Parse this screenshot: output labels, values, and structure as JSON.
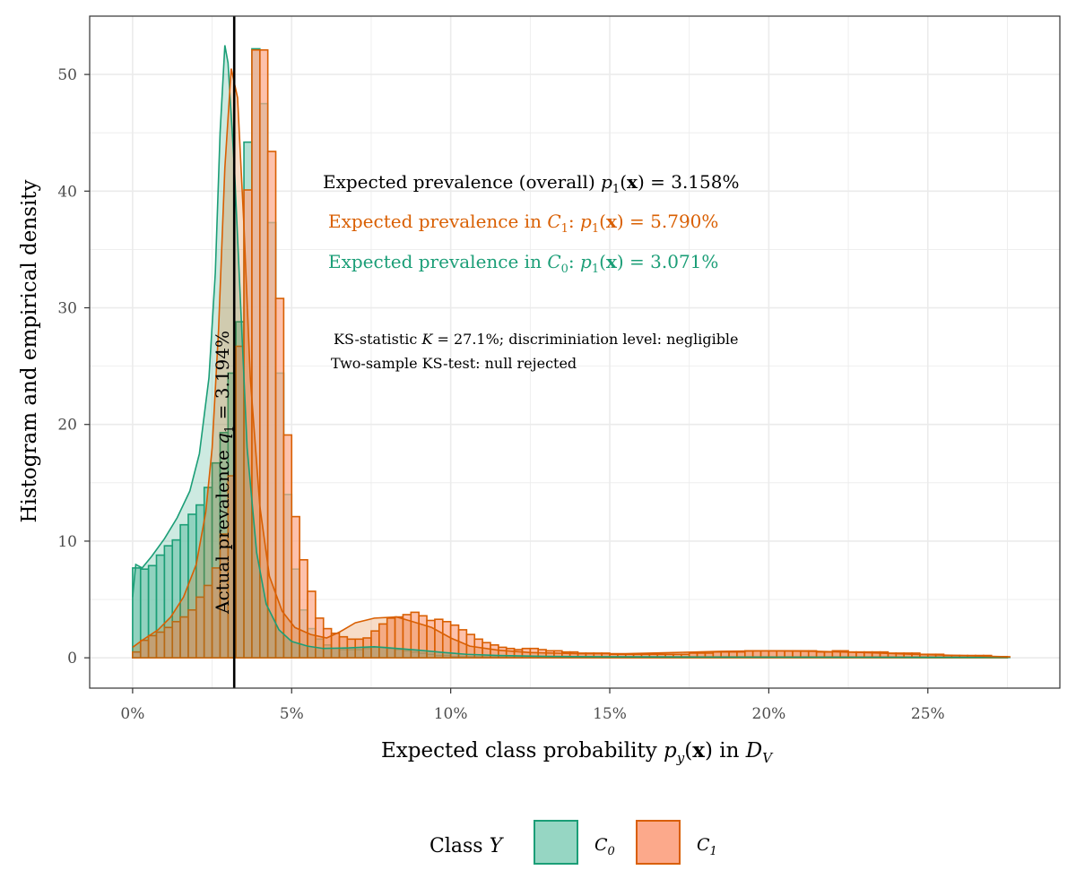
{
  "chart_data": {
    "type": "histogram",
    "xlabel": "Expected class probability p_y(x) in D_V",
    "ylabel": "Histogram and empirical density",
    "x_ticks": [
      "0%",
      "5%",
      "10%",
      "15%",
      "20%",
      "25%"
    ],
    "y_ticks": [
      "0",
      "10",
      "20",
      "30",
      "40",
      "50"
    ],
    "xlim": [
      -0.0135,
      0.2915
    ],
    "ylim": [
      -2.6,
      55.0
    ],
    "grid": true,
    "vline": {
      "x": 0.03194,
      "label": "Actual prevalence q_1 = 3.194%",
      "color": "#000000"
    },
    "annotations": [
      {
        "text": "Expected prevalence (overall) p_1(x) = 3.158%",
        "color": "#000000"
      },
      {
        "text": "Expected prevalence in C_1: p_1(x) = 5.790%",
        "color": "#d95f02"
      },
      {
        "text": "Expected prevalence in C_0: p_1(x) = 3.071%",
        "color": "#1b9e77"
      },
      {
        "text": "KS-statistic K = 27.1%; discriminiation level: negligible",
        "color": "#000000"
      },
      {
        "text": "Two-sample KS-test: null rejected",
        "color": "#000000"
      }
    ],
    "legend": {
      "title": "Class Y",
      "position": "bottom"
    },
    "bin_width": 0.0025,
    "series": [
      {
        "name": "C_0",
        "color": "#1b9e77",
        "fill": "#96d6c3",
        "bins_start": 0.0,
        "values": [
          7.7,
          7.6,
          7.9,
          8.8,
          9.6,
          10.1,
          11.4,
          12.3,
          13.1,
          14.6,
          16.7,
          19.3,
          24.4,
          28.8,
          44.2,
          52.2,
          47.5,
          37.3,
          24.4,
          14.0,
          7.6,
          4.1,
          2.5,
          1.6,
          1.1,
          0.8,
          0.7,
          0.7,
          0.7,
          0.8,
          0.9,
          0.9,
          0.8,
          0.7,
          0.6,
          0.5,
          0.4,
          0.3,
          0.2,
          0.2,
          0.1,
          0.1,
          0.1,
          0.1,
          0.1,
          0.1,
          0.1,
          0.1,
          0.1,
          0.1,
          0.1,
          0.1,
          0.1,
          0.1,
          0.1,
          0.1,
          0.1,
          0.1,
          0.1,
          0.1,
          0.1,
          0.1,
          0.1,
          0.1,
          0.1,
          0.1,
          0.1,
          0.1,
          0.1,
          0.1,
          0.1,
          0.1,
          0.1,
          0.1,
          0.1,
          0.1,
          0.1,
          0.1,
          0.1,
          0.1,
          0.1,
          0.1,
          0.1,
          0.1,
          0.1,
          0.1,
          0.1,
          0.1,
          0.1,
          0.1,
          0.1,
          0.1,
          0.1,
          0.1,
          0.1,
          0.1,
          0.1,
          0.1,
          0.1,
          0.1,
          0.1,
          0.1,
          0.1,
          0.1,
          0.1,
          0.1,
          0.1,
          0.1,
          0.1,
          0.1
        ],
        "density": [
          [
            0.0,
            5.2
          ],
          [
            0.001,
            8.0
          ],
          [
            0.003,
            7.7
          ],
          [
            0.006,
            8.7
          ],
          [
            0.01,
            10.2
          ],
          [
            0.014,
            12.0
          ],
          [
            0.018,
            14.3
          ],
          [
            0.021,
            17.5
          ],
          [
            0.024,
            24.0
          ],
          [
            0.026,
            33.0
          ],
          [
            0.0275,
            45.0
          ],
          [
            0.029,
            52.5
          ],
          [
            0.03,
            51.0
          ],
          [
            0.032,
            42.0
          ],
          [
            0.034,
            30.0
          ],
          [
            0.036,
            18.0
          ],
          [
            0.039,
            9.0
          ],
          [
            0.042,
            4.6
          ],
          [
            0.046,
            2.4
          ],
          [
            0.05,
            1.4
          ],
          [
            0.055,
            1.0
          ],
          [
            0.06,
            0.8
          ],
          [
            0.068,
            0.85
          ],
          [
            0.076,
            0.95
          ],
          [
            0.083,
            0.8
          ],
          [
            0.09,
            0.65
          ],
          [
            0.098,
            0.45
          ],
          [
            0.105,
            0.3
          ],
          [
            0.115,
            0.2
          ],
          [
            0.13,
            0.12
          ],
          [
            0.15,
            0.08
          ],
          [
            0.18,
            0.06
          ],
          [
            0.21,
            0.05
          ],
          [
            0.24,
            0.04
          ],
          [
            0.276,
            0.03
          ]
        ]
      },
      {
        "name": "C_1",
        "color": "#d95f02",
        "fill": "#fca98b",
        "bins_start": 0.0,
        "values": [
          0.5,
          1.5,
          1.9,
          2.2,
          2.6,
          3.1,
          3.5,
          4.1,
          5.2,
          6.2,
          7.7,
          10.6,
          15.6,
          26.7,
          40.1,
          52.1,
          52.1,
          43.4,
          30.8,
          19.1,
          12.1,
          8.4,
          5.7,
          3.4,
          2.5,
          2.1,
          1.8,
          1.6,
          1.6,
          1.7,
          2.3,
          2.9,
          3.4,
          3.5,
          3.7,
          3.9,
          3.6,
          3.2,
          3.3,
          3.1,
          2.8,
          2.4,
          2.0,
          1.6,
          1.3,
          1.1,
          0.9,
          0.8,
          0.7,
          0.8,
          0.8,
          0.7,
          0.6,
          0.6,
          0.5,
          0.5,
          0.4,
          0.4,
          0.4,
          0.4,
          0.3,
          0.3,
          0.3,
          0.3,
          0.3,
          0.3,
          0.3,
          0.3,
          0.3,
          0.3,
          0.4,
          0.4,
          0.4,
          0.5,
          0.5,
          0.5,
          0.5,
          0.6,
          0.6,
          0.6,
          0.6,
          0.6,
          0.6,
          0.6,
          0.6,
          0.6,
          0.5,
          0.5,
          0.6,
          0.6,
          0.5,
          0.5,
          0.5,
          0.5,
          0.5,
          0.4,
          0.4,
          0.4,
          0.4,
          0.3,
          0.3,
          0.3,
          0.2,
          0.2,
          0.2,
          0.2,
          0.2,
          0.2,
          0.1,
          0.1
        ],
        "density": [
          [
            0.0,
            0.9
          ],
          [
            0.003,
            1.5
          ],
          [
            0.008,
            2.4
          ],
          [
            0.012,
            3.5
          ],
          [
            0.016,
            5.2
          ],
          [
            0.02,
            8.0
          ],
          [
            0.023,
            12.5
          ],
          [
            0.025,
            18.0
          ],
          [
            0.027,
            28.0
          ],
          [
            0.029,
            42.0
          ],
          [
            0.031,
            50.5
          ],
          [
            0.033,
            48.0
          ],
          [
            0.035,
            37.0
          ],
          [
            0.037,
            24.0
          ],
          [
            0.04,
            13.0
          ],
          [
            0.043,
            7.0
          ],
          [
            0.047,
            4.0
          ],
          [
            0.051,
            2.6
          ],
          [
            0.056,
            2.0
          ],
          [
            0.061,
            1.7
          ],
          [
            0.065,
            2.2
          ],
          [
            0.07,
            3.0
          ],
          [
            0.076,
            3.4
          ],
          [
            0.083,
            3.5
          ],
          [
            0.088,
            3.1
          ],
          [
            0.094,
            2.6
          ],
          [
            0.1,
            1.7
          ],
          [
            0.106,
            1.0
          ],
          [
            0.115,
            0.65
          ],
          [
            0.125,
            0.45
          ],
          [
            0.14,
            0.35
          ],
          [
            0.155,
            0.35
          ],
          [
            0.17,
            0.45
          ],
          [
            0.185,
            0.55
          ],
          [
            0.2,
            0.6
          ],
          [
            0.215,
            0.55
          ],
          [
            0.23,
            0.45
          ],
          [
            0.245,
            0.3
          ],
          [
            0.26,
            0.2
          ],
          [
            0.27,
            0.12
          ],
          [
            0.276,
            0.08
          ]
        ]
      }
    ]
  }
}
